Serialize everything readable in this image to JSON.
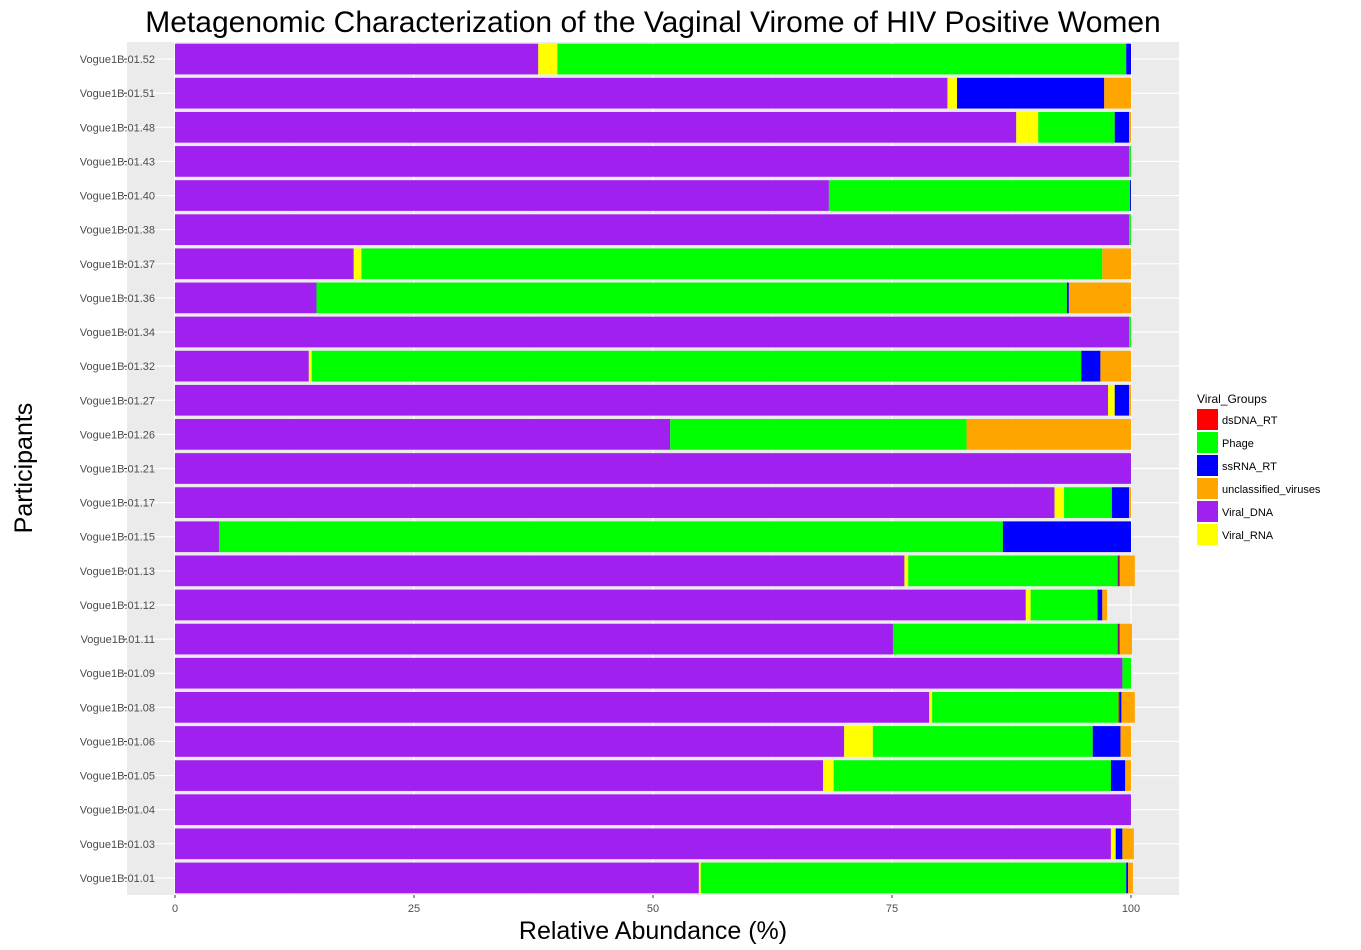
{
  "chart_data": {
    "type": "bar",
    "orientation": "horizontal",
    "stacked": true,
    "title": "Metagenomic Characterization of the Vaginal Virome of HIV Positive Women",
    "xlabel": "Relative Abundance (%)",
    "ylabel": "Participants",
    "xlim": [
      0,
      100
    ],
    "xticks": [
      0,
      25,
      50,
      75,
      100
    ],
    "grid": true,
    "legend_position": "right",
    "legend_title": "Viral_Groups",
    "categories": [
      "Vogue1B.01.52",
      "Vogue1B.01.51",
      "Vogue1B.01.48",
      "Vogue1B.01.43",
      "Vogue1B.01.40",
      "Vogue1B.01.38",
      "Vogue1B.01.37",
      "Vogue1B.01.36",
      "Vogue1B.01.34",
      "Vogue1B.01.32",
      "Vogue1B.01.27",
      "Vogue1B.01.26",
      "Vogue1B.01.21",
      "Vogue1B.01.17",
      "Vogue1B.01.15",
      "Vogue1B.01.13",
      "Vogue1B.01.12",
      "Vogue1B.01.11",
      "Vogue1B.01.09",
      "Vogue1B.01.08",
      "Vogue1B.01.06",
      "Vogue1B.01.05",
      "Vogue1B.01.04",
      "Vogue1B.01.03",
      "Vogue1B.01.01"
    ],
    "stack_order": [
      "Viral_DNA",
      "Viral_RNA",
      "Phage",
      "dsDNA_RT",
      "ssRNA_RT",
      "unclassified_viruses"
    ],
    "series": [
      {
        "name": "dsDNA_RT",
        "color": "#ff0000",
        "values": [
          0,
          0,
          0,
          0,
          0,
          0,
          0,
          0,
          0,
          0,
          0,
          0,
          0,
          0,
          0,
          0.1,
          0,
          0.1,
          0,
          0.1,
          0,
          0,
          0,
          0,
          0
        ]
      },
      {
        "name": "Phage",
        "color": "#00ff00",
        "values": [
          59.5,
          0,
          8,
          0.2,
          31.5,
          0.2,
          77.5,
          78.5,
          0.2,
          80.5,
          0,
          31,
          0,
          5,
          82,
          21.9,
          7,
          23.5,
          0.9,
          19.5,
          23,
          29,
          0,
          0,
          44.5
        ]
      },
      {
        "name": "ssRNA_RT",
        "color": "#0000ff",
        "values": [
          0.5,
          15.4,
          1.5,
          0,
          0.1,
          0,
          0,
          0.2,
          0,
          2,
          1.5,
          0,
          0,
          1.8,
          13.4,
          0.1,
          0.5,
          0.1,
          0,
          0.2,
          2.9,
          1.5,
          0,
          0.7,
          0.2
        ]
      },
      {
        "name": "unclassified_viruses",
        "color": "#ffa500",
        "values": [
          0,
          2.8,
          0.2,
          0,
          0,
          0,
          3,
          6.5,
          0,
          3.2,
          0.2,
          17.2,
          0,
          0.2,
          0,
          1.6,
          0.5,
          1.3,
          0,
          1.4,
          1.1,
          0.6,
          0,
          1.2,
          0.5
        ]
      },
      {
        "name": "Viral_DNA",
        "color": "#a020f0",
        "values": [
          38,
          80.8,
          88,
          99.8,
          68.4,
          99.8,
          18.7,
          14.8,
          99.8,
          14,
          97.6,
          51.8,
          100,
          92,
          4.6,
          76.3,
          89,
          75.1,
          99.1,
          78.9,
          70,
          67.8,
          100,
          97.9,
          54.8
        ]
      },
      {
        "name": "Viral_RNA",
        "color": "#ffff00",
        "values": [
          2,
          1,
          2.3,
          0,
          0,
          0,
          0.8,
          0,
          0,
          0.3,
          0.7,
          0,
          0,
          1,
          0,
          0.4,
          0.5,
          0,
          0,
          0.3,
          3,
          1.1,
          0,
          0.5,
          0.2
        ]
      }
    ]
  }
}
